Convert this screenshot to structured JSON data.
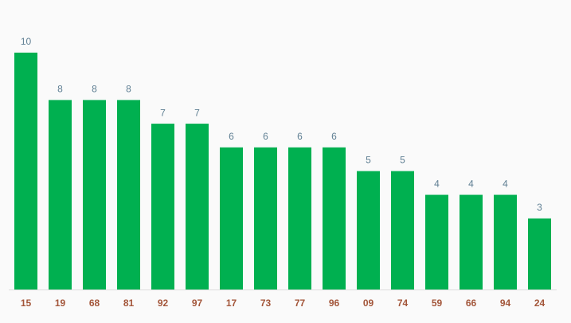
{
  "chart_data": {
    "type": "bar",
    "categories": [
      "15",
      "19",
      "68",
      "81",
      "92",
      "97",
      "17",
      "73",
      "77",
      "96",
      "09",
      "74",
      "59",
      "66",
      "94",
      "24"
    ],
    "values": [
      10,
      8,
      8,
      8,
      7,
      7,
      6,
      6,
      6,
      6,
      5,
      5,
      4,
      4,
      4,
      3
    ],
    "color": "#00b050",
    "ylim": [
      0,
      10
    ]
  }
}
